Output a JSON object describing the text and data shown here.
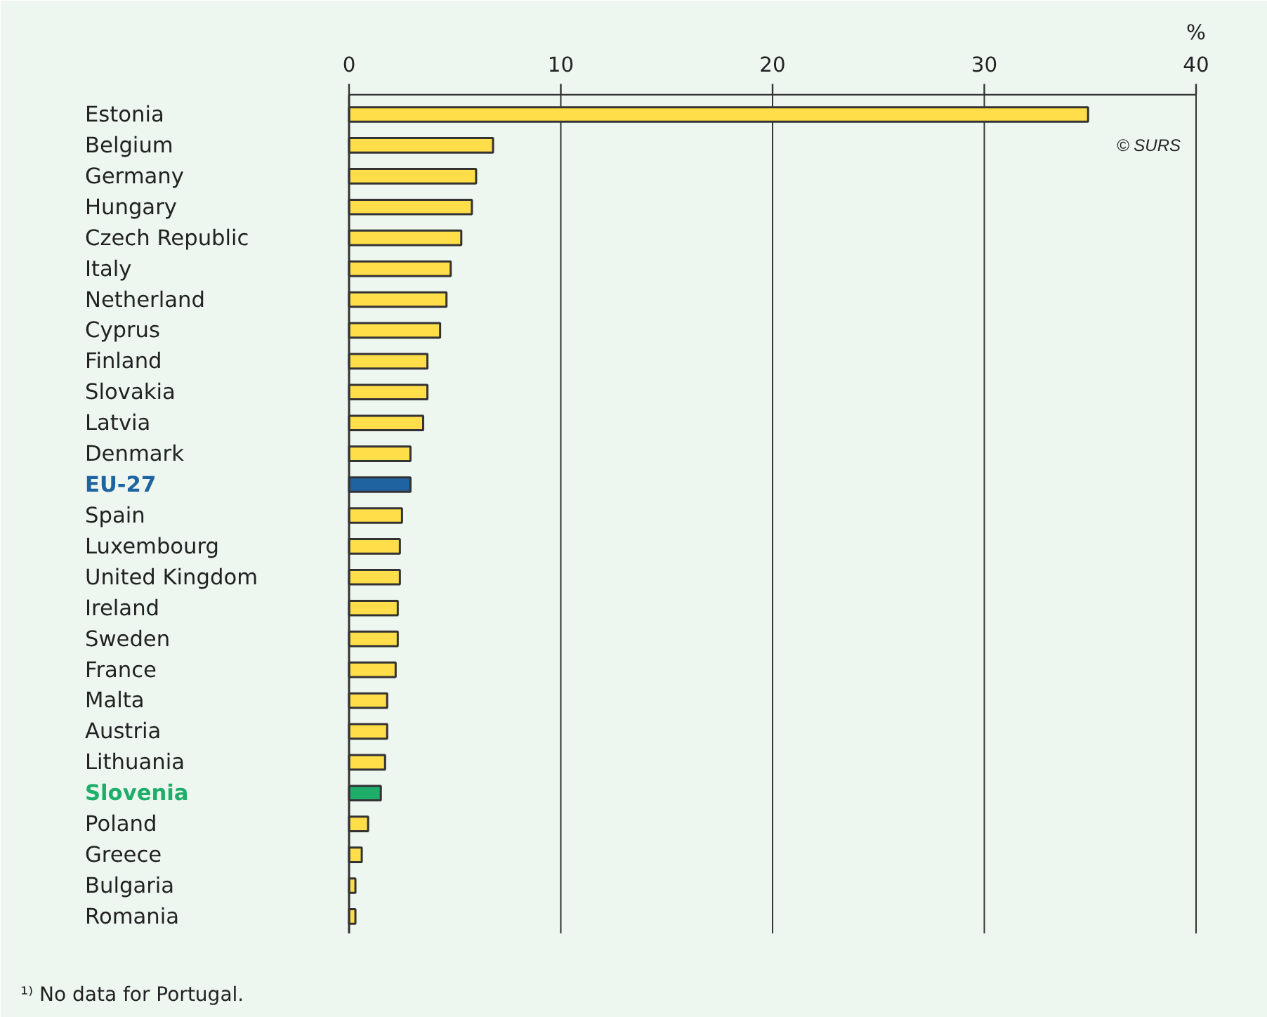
{
  "chart_data": {
    "type": "bar",
    "orientation": "horizontal",
    "xlabel": "%",
    "categories": [
      "Estonia",
      "Belgium",
      "Germany",
      "Hungary",
      "Czech Republic",
      "Italy",
      "Netherland",
      "Cyprus",
      "Finland",
      "Slovakia",
      "Latvia",
      "Denmark",
      "EU-27",
      "Spain",
      "Luxembourg",
      "United Kingdom",
      "Ireland",
      "Sweden",
      "France",
      "Malta",
      "Austria",
      "Lithuania",
      "Slovenia",
      "Poland",
      "Greece",
      "Bulgaria",
      "Romania"
    ],
    "values": [
      34.9,
      6.8,
      6.0,
      5.8,
      5.3,
      4.8,
      4.6,
      4.3,
      3.7,
      3.7,
      3.5,
      2.9,
      2.9,
      2.5,
      2.4,
      2.4,
      2.3,
      2.3,
      2.2,
      1.8,
      1.8,
      1.7,
      1.5,
      0.9,
      0.6,
      0.3,
      0.3
    ],
    "colors": [
      "#ffde4a",
      "#ffde4a",
      "#ffde4a",
      "#ffde4a",
      "#ffde4a",
      "#ffde4a",
      "#ffde4a",
      "#ffde4a",
      "#ffde4a",
      "#ffde4a",
      "#ffde4a",
      "#ffde4a",
      "#1f64a0",
      "#ffde4a",
      "#ffde4a",
      "#ffde4a",
      "#ffde4a",
      "#ffde4a",
      "#ffde4a",
      "#ffde4a",
      "#ffde4a",
      "#ffde4a",
      "#1fae6a",
      "#ffde4a",
      "#ffde4a",
      "#ffde4a",
      "#ffde4a"
    ],
    "xlim": [
      0,
      40
    ],
    "xticks": [
      0,
      10,
      20,
      30,
      40
    ],
    "grid": "x",
    "legend": false,
    "annotations": [
      "© SURS",
      "¹⁾ No data for Portugal."
    ]
  }
}
